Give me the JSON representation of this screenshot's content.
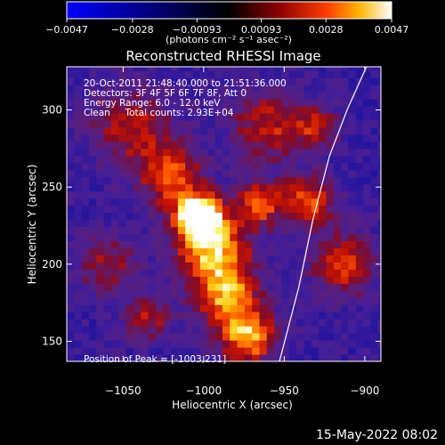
{
  "chart_data": {
    "type": "heatmap",
    "title": "Reconstructed RHESSI Image",
    "xlabel": "Heliocentric X (arcsec)",
    "ylabel": "Heliocentric Y (arcsec)",
    "xlim": [
      -1085,
      -890
    ],
    "ylim": [
      137,
      328
    ],
    "x_ticks": [
      -1050,
      -1000,
      -950,
      -900
    ],
    "y_ticks": [
      150,
      200,
      250,
      300
    ],
    "x_tick_labels": [
      "−1050",
      "−1000",
      "−950",
      "−900"
    ],
    "y_tick_labels": [
      "150",
      "200",
      "250",
      "300"
    ],
    "colorbar": {
      "min": -0.0047,
      "max": 0.0047,
      "ticks": [
        -0.0047,
        -0.0028,
        -0.00093,
        0.00093,
        0.0028,
        0.0047
      ],
      "tick_labels": [
        "−0.0047",
        "−0.0028",
        "−0.00093",
        "0.00093",
        "0.0028",
        "0.0047"
      ],
      "units_label": "(photons cm⁻² s⁻¹ asec⁻²)"
    },
    "annotations": [
      "20-Oct-2011 21:48:40.000 to 21:51:36.000",
      "Detectors: 3F 4F 5F 6F 7F 8F, Att 0",
      "Energy Range: 6.0 - 12.0 keV",
      "Clean     Total counts: 2.93E+04"
    ],
    "peak_label": "Position of Peak = [-1003,231]",
    "peak": [
      -1003,
      231
    ],
    "limb": [
      [
        -953,
        137
      ],
      [
        -941,
        185
      ],
      [
        -932,
        230
      ],
      [
        -922,
        270
      ],
      [
        -911,
        300
      ],
      [
        -899,
        328
      ]
    ],
    "sources": [
      {
        "x": -1003,
        "y": 231,
        "v": 1.0,
        "s": 10
      },
      {
        "x": -994,
        "y": 210,
        "v": 0.75,
        "s": 16
      },
      {
        "x": -1020,
        "y": 256,
        "v": 0.55,
        "s": 14
      },
      {
        "x": -985,
        "y": 178,
        "v": 0.65,
        "s": 14
      },
      {
        "x": -972,
        "y": 152,
        "v": 0.7,
        "s": 12
      },
      {
        "x": -1045,
        "y": 290,
        "v": 0.45,
        "s": 18
      },
      {
        "x": -960,
        "y": 290,
        "v": 0.45,
        "s": 16
      },
      {
        "x": -935,
        "y": 240,
        "v": 0.55,
        "s": 12
      },
      {
        "x": -913,
        "y": 200,
        "v": 0.5,
        "s": 14
      },
      {
        "x": -930,
        "y": 290,
        "v": 0.4,
        "s": 10
      },
      {
        "x": -1060,
        "y": 200,
        "v": 0.35,
        "s": 14
      },
      {
        "x": -1035,
        "y": 165,
        "v": 0.4,
        "s": 10
      },
      {
        "x": -965,
        "y": 240,
        "v": 0.55,
        "s": 10
      }
    ]
  },
  "footer": {
    "date": "15-May-2022 08:02"
  }
}
